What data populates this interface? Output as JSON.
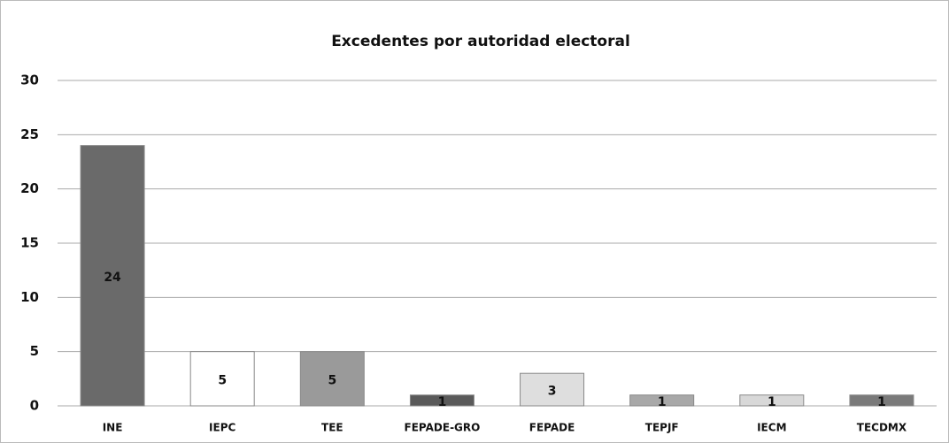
{
  "chart_data": {
    "type": "bar",
    "title": "Excedentes por autoridad electoral",
    "categories": [
      "INE",
      "IEPC",
      "TEE",
      "FEPADE-GRO",
      "FEPADE",
      "TEPJF",
      "IECM",
      "TECDMX"
    ],
    "values": [
      24,
      5,
      5,
      1,
      3,
      1,
      1,
      1
    ],
    "colors": [
      "#6a6a6a",
      "#ffffff",
      "#9a9a9a",
      "#5a5a5a",
      "#dedede",
      "#a8a8a8",
      "#d8d8d8",
      "#7a7a7a"
    ],
    "ylim": [
      0,
      30
    ],
    "yticks": [
      0,
      5,
      10,
      15,
      20,
      25,
      30
    ],
    "grid": true
  }
}
